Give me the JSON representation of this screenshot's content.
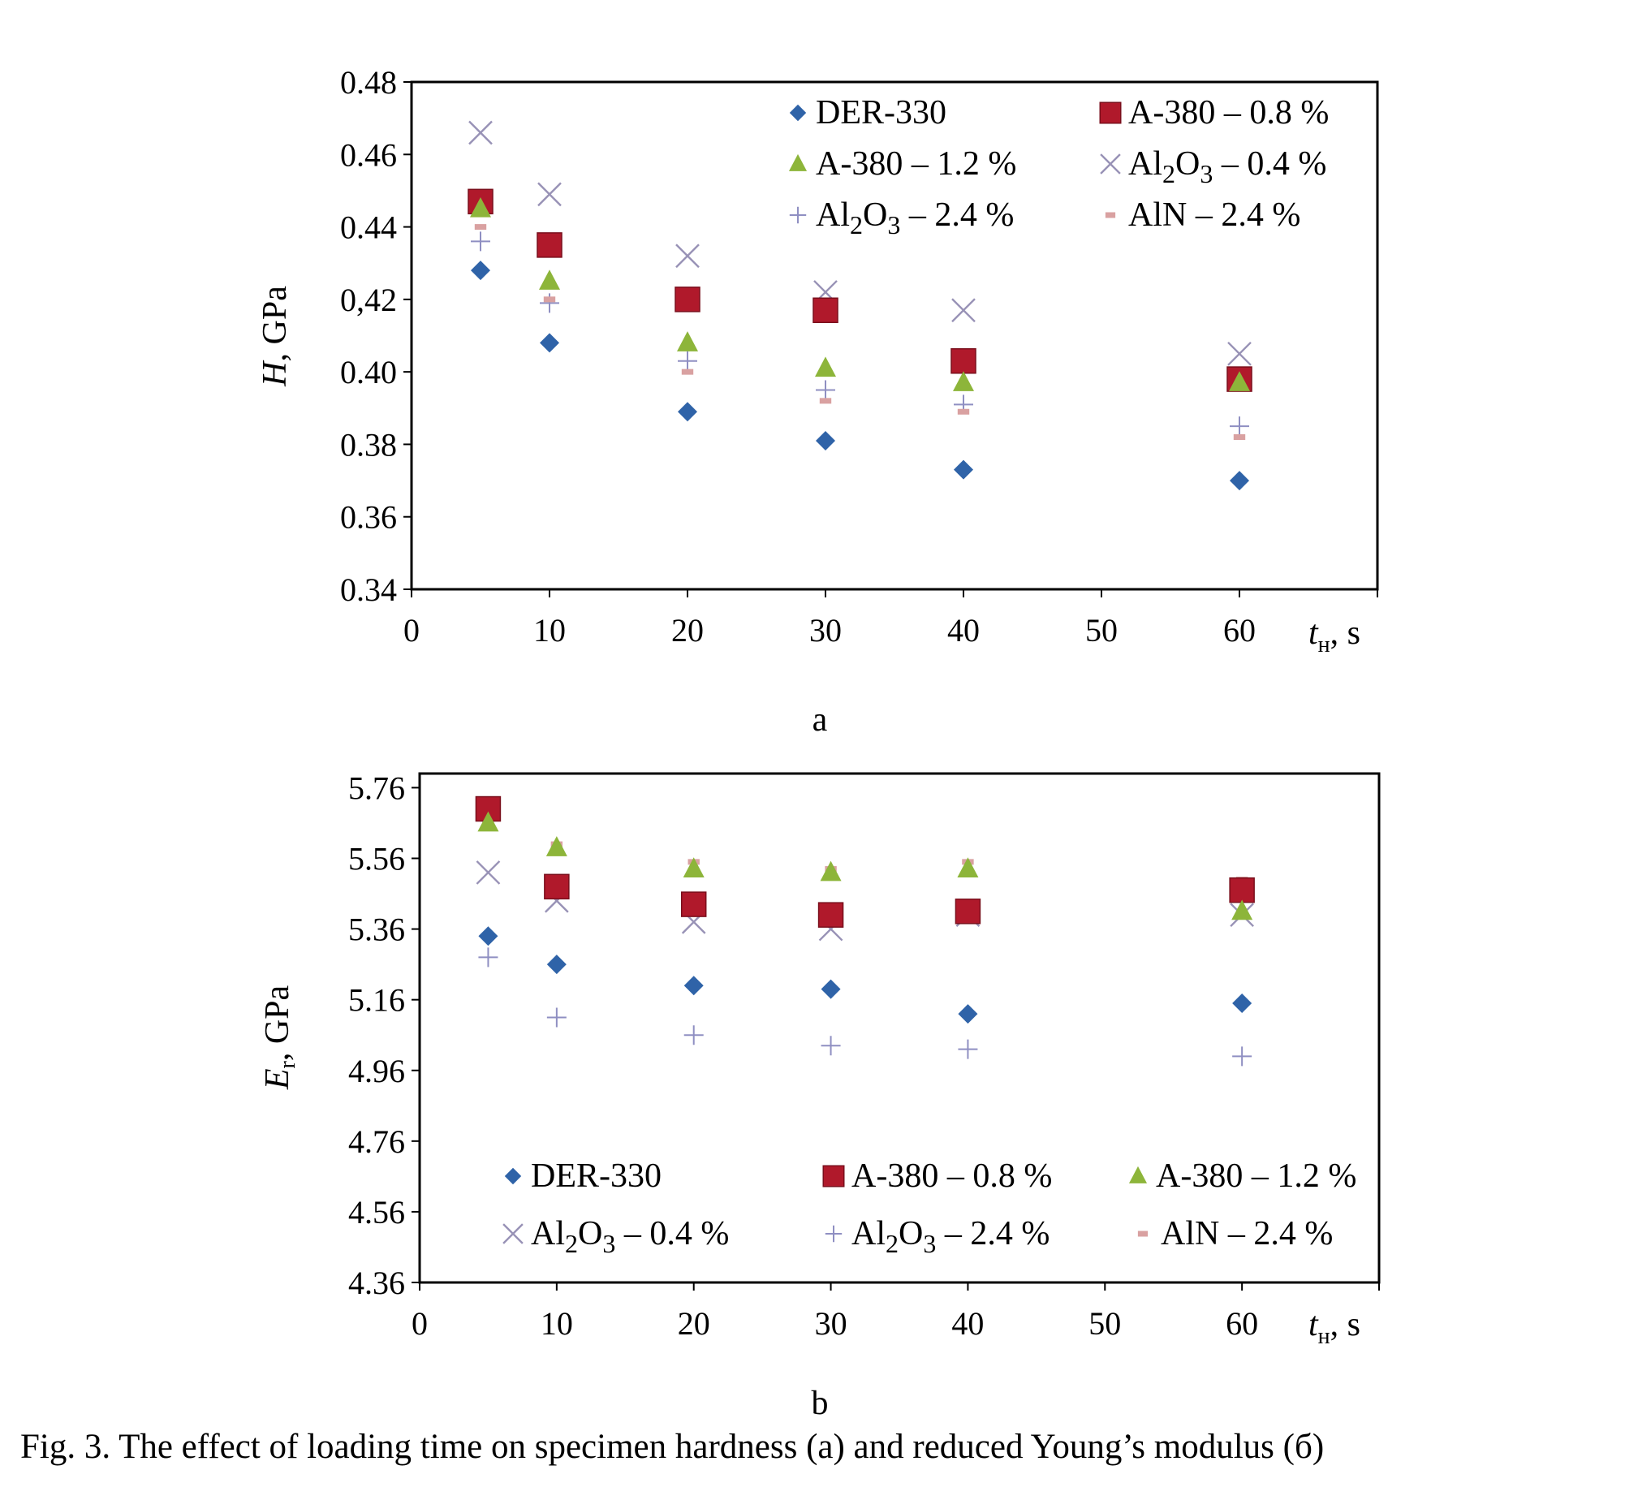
{
  "colors": {
    "DER-330": "#2f63a8",
    "A-380 – 0.8 %": "#b0192b",
    "A-380 – 1.2 %": "#8db53a",
    "Al2O3 – 0.4 %": "#9892b6",
    "Al2O3 – 2.4 %": "#8f8fc2",
    "AlN – 2.4 %": "#d9a1a1"
  },
  "figure_caption": "Fig. 3. The effect of loading time on specimen hardness (a) and reduced Young’s modulus (б)",
  "chart_data": [
    {
      "type": "scatter",
      "panel_label": "a",
      "xlabel": {
        "main": "t",
        "sub": "н",
        "unit": ", s"
      },
      "ylabel": {
        "main": "H",
        "unit": ", GPa"
      },
      "xlim": [
        0,
        70
      ],
      "ylim": [
        0.34,
        0.48
      ],
      "x_ticks": [
        "0",
        "10",
        "20",
        "30",
        "40",
        "50",
        "60"
      ],
      "y_ticks": [
        "0.34",
        "0.36",
        "0.38",
        "0.40",
        "0,42",
        "0.44",
        "0.46",
        "0.48"
      ],
      "legend_position": "top-right",
      "series": [
        {
          "name": "DER-330",
          "marker": "diamond",
          "x": [
            5,
            10,
            20,
            30,
            40,
            60
          ],
          "y": [
            0.428,
            0.408,
            0.389,
            0.381,
            0.373,
            0.37
          ]
        },
        {
          "name": "A-380 – 0.8 %",
          "marker": "square",
          "x": [
            5,
            10,
            20,
            30,
            40,
            60
          ],
          "y": [
            0.447,
            0.435,
            0.42,
            0.417,
            0.403,
            0.398
          ]
        },
        {
          "name": "A-380 – 1.2 %",
          "marker": "triangle",
          "x": [
            5,
            10,
            20,
            30,
            40,
            60
          ],
          "y": [
            0.445,
            0.425,
            0.408,
            0.401,
            0.397,
            0.397
          ]
        },
        {
          "name": "Al2O3 – 0.4 %",
          "marker": "x",
          "x": [
            5,
            10,
            20,
            30,
            40,
            60
          ],
          "y": [
            0.466,
            0.449,
            0.432,
            0.422,
            0.417,
            0.405
          ]
        },
        {
          "name": "Al2O3 – 2.4 %",
          "marker": "plus",
          "x": [
            5,
            10,
            20,
            30,
            40,
            60
          ],
          "y": [
            0.436,
            0.419,
            0.403,
            0.395,
            0.391,
            0.385
          ]
        },
        {
          "name": "AlN – 2.4 %",
          "marker": "dash",
          "x": [
            5,
            10,
            20,
            30,
            40,
            60
          ],
          "y": [
            0.44,
            0.42,
            0.4,
            0.392,
            0.389,
            0.382
          ]
        }
      ]
    },
    {
      "type": "scatter",
      "panel_label": "b",
      "xlabel": {
        "main": "t",
        "sub": "н",
        "unit": ", s"
      },
      "ylabel": {
        "main": "E",
        "sub": "r",
        "unit": ", GPa"
      },
      "xlim": [
        0,
        70
      ],
      "ylim": [
        4.36,
        5.8
      ],
      "x_ticks": [
        "0",
        "10",
        "20",
        "30",
        "40",
        "50",
        "60"
      ],
      "y_ticks": [
        "4.36",
        "4.56",
        "4.76",
        "4.96",
        "5.16",
        "5.36",
        "5.56",
        "5.76"
      ],
      "legend_position": "bottom",
      "series": [
        {
          "name": "DER-330",
          "marker": "diamond",
          "x": [
            5,
            10,
            20,
            30,
            40,
            60
          ],
          "y": [
            5.34,
            5.26,
            5.2,
            5.19,
            5.12,
            5.15
          ]
        },
        {
          "name": "A-380 – 0.8 %",
          "marker": "square",
          "x": [
            5,
            10,
            20,
            30,
            40,
            60
          ],
          "y": [
            5.7,
            5.48,
            5.43,
            5.4,
            5.41,
            5.47
          ]
        },
        {
          "name": "A-380 – 1.2 %",
          "marker": "triangle",
          "x": [
            5,
            10,
            20,
            30,
            40,
            60
          ],
          "y": [
            5.66,
            5.59,
            5.53,
            5.52,
            5.53,
            5.41
          ]
        },
        {
          "name": "Al2O3 – 0.4 %",
          "marker": "x",
          "x": [
            5,
            10,
            20,
            30,
            40,
            60
          ],
          "y": [
            5.52,
            5.44,
            5.38,
            5.36,
            5.4,
            5.4
          ]
        },
        {
          "name": "Al2O3 – 2.4 %",
          "marker": "plus",
          "x": [
            5,
            10,
            20,
            30,
            40,
            60
          ],
          "y": [
            5.28,
            5.11,
            5.06,
            5.03,
            5.02,
            5.0
          ]
        },
        {
          "name": "AlN – 2.4 %",
          "marker": "dash",
          "x": [
            5,
            10,
            20,
            30,
            40,
            60
          ],
          "y": [
            5.67,
            5.6,
            5.55,
            5.53,
            5.55,
            5.5
          ]
        }
      ]
    }
  ]
}
